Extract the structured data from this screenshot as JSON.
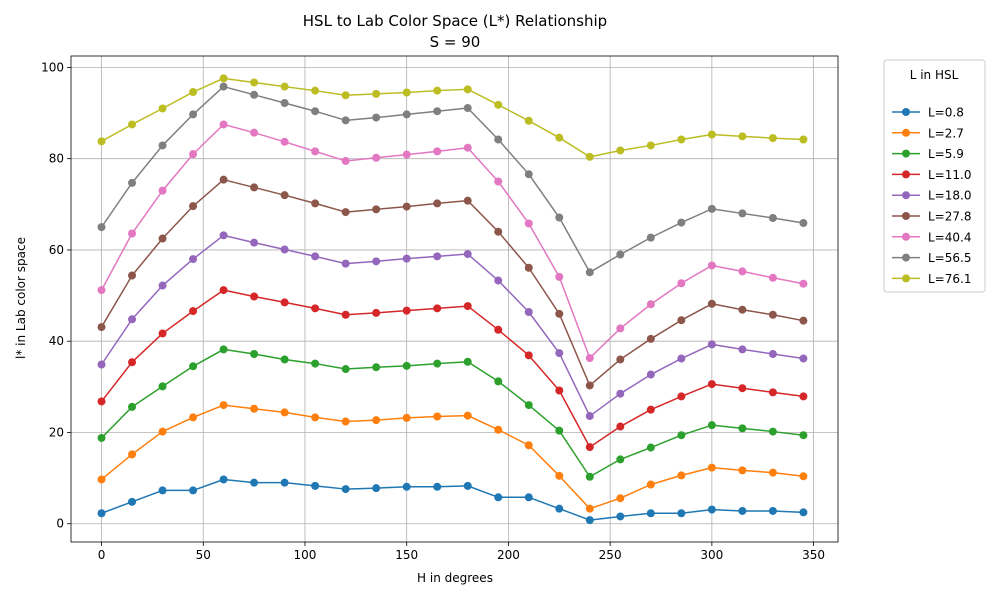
{
  "chart_data": {
    "type": "line",
    "title_line1": "HSL to Lab Color Space (L*) Relationship",
    "title_line2": "S = 90",
    "xlabel": "H in degrees",
    "ylabel": "l* in Lab color space",
    "xlim": [
      -15,
      362
    ],
    "ylim": [
      -4,
      102.5
    ],
    "xticks": [
      0,
      50,
      100,
      150,
      200,
      250,
      300,
      350
    ],
    "yticks": [
      0,
      20,
      40,
      60,
      80,
      100
    ],
    "grid": true,
    "legend": {
      "title": "L in HSL",
      "placement": "outside-right"
    },
    "x": [
      0,
      15,
      30,
      45,
      60,
      75,
      90,
      105,
      120,
      135,
      150,
      165,
      180,
      195,
      210,
      225,
      240,
      255,
      270,
      285,
      300,
      315,
      330,
      345
    ],
    "series": [
      {
        "name": "L=0.8",
        "color": "#1f77b4",
        "values": [
          2.3,
          4.8,
          7.3,
          7.3,
          9.7,
          9.0,
          9.0,
          8.3,
          7.6,
          7.8,
          8.1,
          8.1,
          8.3,
          5.8,
          5.8,
          3.3,
          0.8,
          1.6,
          2.3,
          2.3,
          3.1,
          2.8,
          2.8,
          2.5
        ]
      },
      {
        "name": "L=2.7",
        "color": "#ff7f0e",
        "values": [
          9.7,
          15.2,
          20.2,
          23.3,
          26.0,
          25.2,
          24.4,
          23.3,
          22.4,
          22.7,
          23.2,
          23.5,
          23.7,
          20.6,
          17.2,
          10.5,
          3.3,
          5.6,
          8.6,
          10.6,
          12.3,
          11.7,
          11.2,
          10.4
        ]
      },
      {
        "name": "L=5.9",
        "color": "#2ca02c",
        "values": [
          18.8,
          25.6,
          30.1,
          34.5,
          38.2,
          37.2,
          36.0,
          35.1,
          33.9,
          34.3,
          34.6,
          35.1,
          35.5,
          31.2,
          26.0,
          20.4,
          10.3,
          14.1,
          16.7,
          19.4,
          21.6,
          20.9,
          20.2,
          19.4
        ]
      },
      {
        "name": "L=11.0",
        "color": "#d62728",
        "values": [
          26.8,
          35.4,
          41.7,
          46.6,
          51.2,
          49.8,
          48.5,
          47.2,
          45.8,
          46.2,
          46.7,
          47.2,
          47.7,
          42.5,
          36.9,
          29.2,
          16.8,
          21.3,
          25.0,
          27.9,
          30.6,
          29.7,
          28.8,
          27.9
        ]
      },
      {
        "name": "L=18.0",
        "color": "#9467bd",
        "values": [
          34.9,
          44.8,
          52.2,
          58.0,
          63.2,
          61.6,
          60.1,
          58.6,
          57.0,
          57.5,
          58.1,
          58.6,
          59.1,
          53.3,
          46.4,
          37.4,
          23.6,
          28.5,
          32.7,
          36.2,
          39.3,
          38.2,
          37.2,
          36.2
        ]
      },
      {
        "name": "L=27.8",
        "color": "#8c564b",
        "values": [
          43.1,
          54.4,
          62.5,
          69.6,
          75.4,
          73.7,
          72.0,
          70.2,
          68.3,
          68.9,
          69.5,
          70.2,
          70.8,
          64.0,
          56.1,
          46.0,
          30.3,
          36.0,
          40.5,
          44.6,
          48.2,
          46.9,
          45.8,
          44.5
        ]
      },
      {
        "name": "L=40.4",
        "color": "#e377c2",
        "values": [
          51.2,
          63.6,
          73.0,
          81.0,
          87.5,
          85.7,
          83.7,
          81.6,
          79.5,
          80.2,
          80.9,
          81.6,
          82.4,
          75.0,
          65.8,
          54.1,
          36.3,
          42.8,
          48.1,
          52.7,
          56.6,
          55.3,
          53.9,
          52.6
        ]
      },
      {
        "name": "L=56.5",
        "color": "#7f7f7f",
        "values": [
          65.0,
          74.7,
          82.9,
          89.7,
          95.8,
          94.0,
          92.2,
          90.4,
          88.4,
          89.0,
          89.7,
          90.4,
          91.1,
          84.2,
          76.6,
          67.1,
          55.1,
          59.0,
          62.7,
          66.0,
          69.0,
          68.0,
          67.0,
          65.9
        ]
      },
      {
        "name": "L=76.1",
        "color": "#bcbd22",
        "values": [
          83.8,
          87.5,
          91.0,
          94.6,
          97.6,
          96.7,
          95.8,
          94.9,
          93.9,
          94.2,
          94.5,
          94.9,
          95.2,
          91.8,
          88.3,
          84.6,
          80.4,
          81.8,
          82.9,
          84.2,
          85.3,
          84.9,
          84.5,
          84.2
        ]
      }
    ]
  }
}
